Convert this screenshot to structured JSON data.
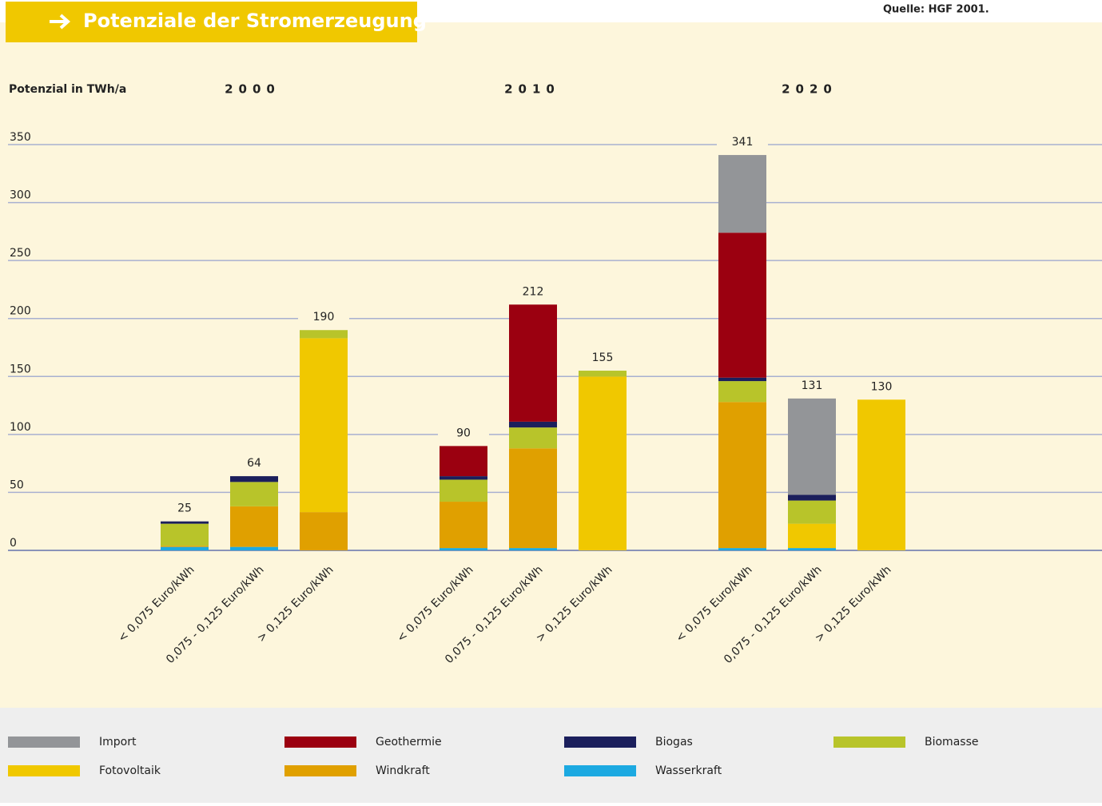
{
  "chart_data": {
    "type": "stacked_bar",
    "title": "Potenziale der Stromerzeugung",
    "source": "Quelle: HGF 2001.",
    "y_label": "Potenzial in TWh/a",
    "groups": [
      "2000",
      "2010",
      "2020"
    ],
    "categories": [
      "< 0,075 Euro/kWh",
      "0,075 - 0,125 Euro/kWh",
      "> 0,125 Euro/kWh",
      "< 0,075 Euro/kWh",
      "0,075 - 0,125 Euro/kWh",
      "> 0,125 Euro/kWh",
      "< 0,075 Euro/kWh",
      "0,075 - 0,125 Euro/kWh",
      "> 0,125 Euro/kWh"
    ],
    "series": [
      {
        "name": "Wasserkraft",
        "color": "#1ca9e1",
        "values": [
          3,
          3,
          0,
          2,
          2,
          0,
          2,
          2,
          0
        ]
      },
      {
        "name": "Windkraft",
        "color": "#e0a000",
        "values": [
          1,
          35,
          33,
          40,
          86,
          0,
          126,
          0,
          0
        ]
      },
      {
        "name": "Fotovoltaik",
        "color": "#f0c800",
        "values": [
          0,
          0,
          150,
          0,
          0,
          150,
          0,
          21,
          130
        ]
      },
      {
        "name": "Biomasse",
        "color": "#b8c42a",
        "values": [
          19,
          21,
          7,
          19,
          18,
          5,
          18,
          20,
          0
        ]
      },
      {
        "name": "Biogas",
        "color": "#1b1f5c",
        "values": [
          2,
          5,
          0,
          3,
          5,
          0,
          3,
          5,
          0
        ]
      },
      {
        "name": "Geothermie",
        "color": "#9b0010",
        "values": [
          0,
          0,
          0,
          26,
          101,
          0,
          125,
          0,
          0
        ]
      },
      {
        "name": "Import",
        "color": "#939598",
        "values": [
          0,
          0,
          0,
          0,
          0,
          0,
          67,
          83,
          0
        ]
      }
    ],
    "totals": [
      25,
      64,
      190,
      90,
      212,
      155,
      341,
      131,
      130
    ],
    "ylim": [
      0,
      350
    ],
    "yticks": [
      0,
      50,
      100,
      150,
      200,
      250,
      300,
      350
    ],
    "grid": true
  }
}
